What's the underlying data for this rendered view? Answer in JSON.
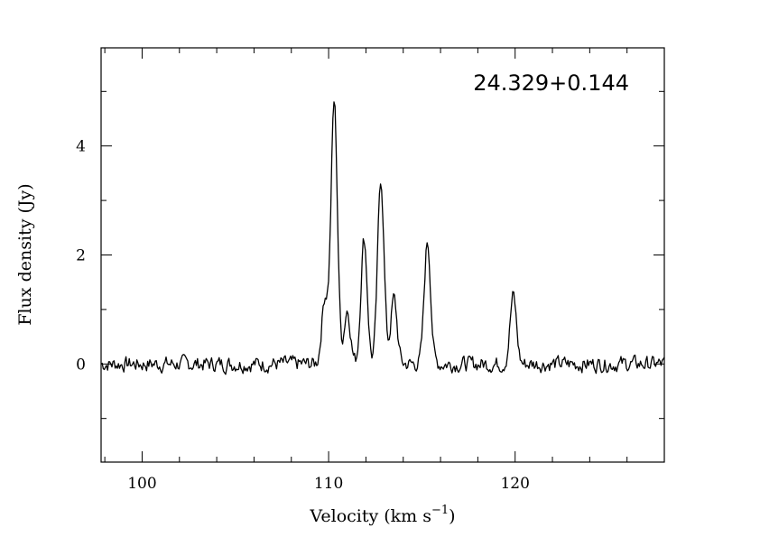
{
  "chart_data": {
    "type": "line",
    "title": "",
    "annotation": "24.329+0.144",
    "xlabel": "Velocity (km s",
    "xlabel_sup": "−1",
    "xlabel_close": ")",
    "ylabel": "Flux density (Jy)",
    "xlim": [
      97.8,
      128
    ],
    "ylim": [
      -1.8,
      5.8
    ],
    "x_ticks": [
      {
        "value": 100,
        "label": "100"
      },
      {
        "value": 110,
        "label": "110"
      },
      {
        "value": 120,
        "label": "120"
      }
    ],
    "x_minor_step": 2,
    "y_ticks": [
      {
        "value": 0,
        "label": "0"
      },
      {
        "value": 2,
        "label": "2"
      },
      {
        "value": 4,
        "label": "4"
      }
    ],
    "y_minor_step": 1,
    "grid": false,
    "line_color": "#000000",
    "peaks": [
      {
        "x": 109.8,
        "y": 1.2
      },
      {
        "x": 110.3,
        "y": 4.8
      },
      {
        "x": 111.0,
        "y": 1.0
      },
      {
        "x": 111.9,
        "y": 2.3
      },
      {
        "x": 112.8,
        "y": 3.4
      },
      {
        "x": 113.5,
        "y": 1.2
      },
      {
        "x": 115.3,
        "y": 2.25
      },
      {
        "x": 119.9,
        "y": 1.25
      }
    ],
    "noise_rms": 0.13
  }
}
